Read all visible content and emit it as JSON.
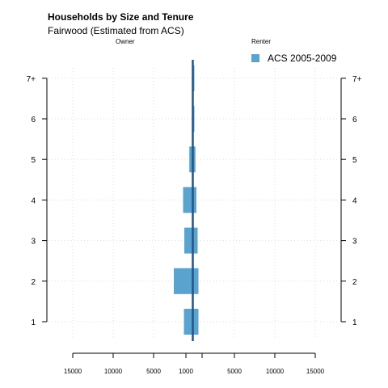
{
  "chart_data": {
    "type": "bar",
    "title": "Households by Size and Tenure",
    "subtitle": "Fairwood (Estimated from ACS)",
    "left_label": "Owner",
    "right_label": "Renter",
    "categories": [
      "1",
      "2",
      "3",
      "4",
      "5",
      "6",
      "7+"
    ],
    "series": [
      {
        "name": "ACS 2005-2009",
        "color": "#5ba3cf",
        "owner": [
          1250,
          2500,
          1200,
          1350,
          580,
          80,
          80
        ],
        "renter": [
          550,
          550,
          450,
          300,
          180,
          50,
          50
        ]
      }
    ],
    "margin_of_error": {
      "owner": [
        1250,
        2500,
        1200,
        1350,
        580,
        80,
        80
      ],
      "renter": [
        550,
        550,
        450,
        300,
        180,
        50,
        50
      ]
    },
    "xlim": [
      -15000,
      15000
    ],
    "x_tick_labels": [
      "15000",
      "10000",
      "5000",
      "1000",
      "5000",
      "10000",
      "15000"
    ],
    "grid": true,
    "legend_position": "top-right"
  }
}
